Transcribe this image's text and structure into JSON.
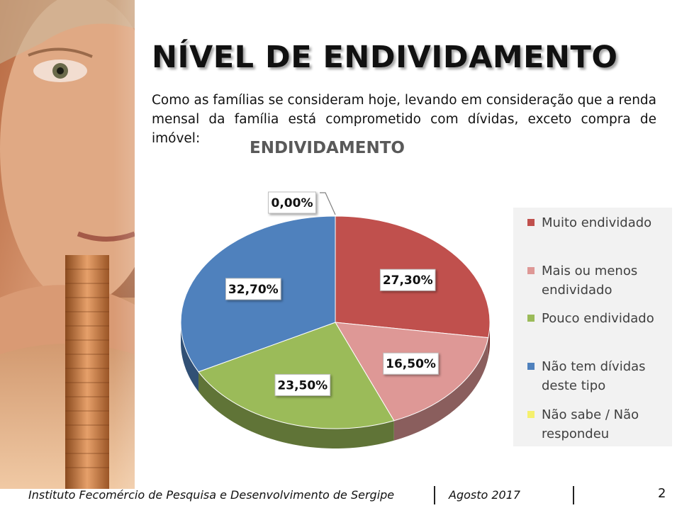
{
  "slide": {
    "title": "NÍVEL DE ENDIVIDAMENTO",
    "intro": "Como as famílias se consideram hoje, levando em consideração que a renda mensal da família está comprometido com dívidas, exceto compra de imóvel:",
    "page_number": "2"
  },
  "footer": {
    "institute": "Instituto Fecomércio de Pesquisa e Desenvolvimento de Sergipe",
    "date": "Agosto  2017"
  },
  "chart_data": {
    "type": "pie",
    "title": "ENDIVIDAMENTO",
    "style": "3d-pie",
    "legend_position": "right",
    "slices": [
      {
        "label": "Muito endividado",
        "value": 27.3,
        "display": "27,30%",
        "color": "#c0504d"
      },
      {
        "label": "Mais ou menos endividado",
        "value": 16.5,
        "display": "16,50%",
        "color": "#de9896"
      },
      {
        "label": "Pouco endividado",
        "value": 23.5,
        "display": "23,50%",
        "color": "#9bbb59"
      },
      {
        "label": "Não tem dívidas deste tipo",
        "value": 32.7,
        "display": "32,70%",
        "color": "#4f81bd"
      },
      {
        "label": "Não sabe / Não respondeu",
        "value": 0.0,
        "display": "0,00%",
        "color": "#f5f06e"
      }
    ]
  }
}
